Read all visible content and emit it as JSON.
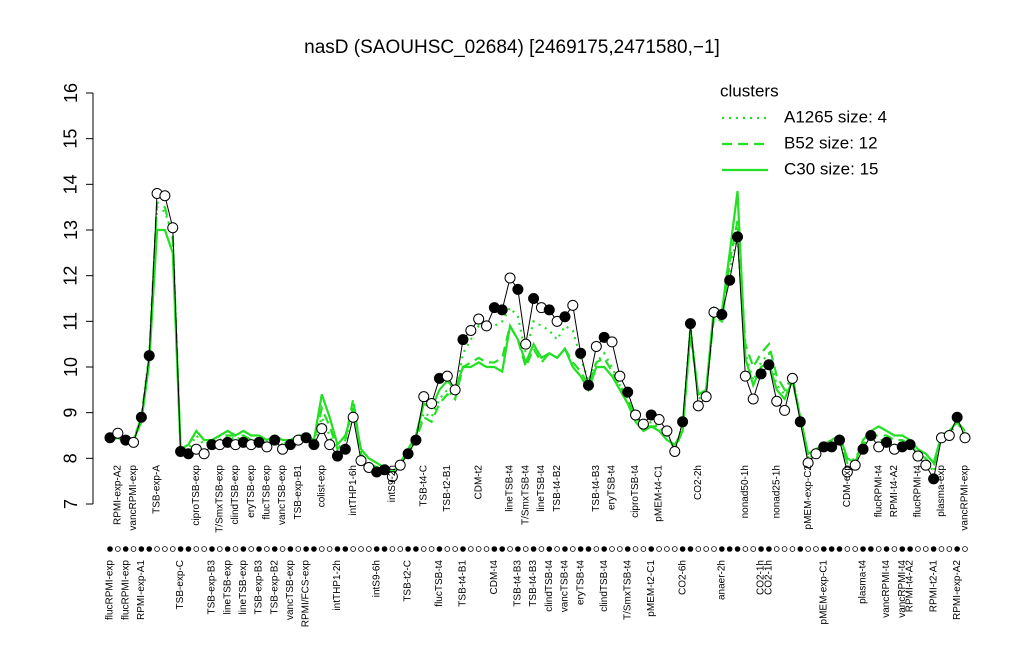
{
  "chart_data": {
    "type": "line",
    "title": "nasD (SAOUHSC_02684) [2469175,2471580,−1]",
    "legend_title": "clusters",
    "legend": "topright",
    "ylim": [
      7,
      16
    ],
    "yticks": [
      7,
      8,
      9,
      10,
      11,
      12,
      13,
      14,
      15,
      16
    ],
    "line_color": "#000000",
    "categories": [
      "flucRPMI-exp",
      "RPMI-exp-A2",
      "flucRPMI-exp",
      "vancRPMI-exp",
      "RPMI-exp-A1",
      null,
      "TSB-exp-A",
      null,
      null,
      "TSB-exp-C",
      null,
      "ciproTSB-exp",
      null,
      "TSB-exp-B3",
      "T/SmxTSB-exp",
      "lineTSB-exp",
      "clindTSB-exp",
      "lineTSB-exp",
      "eryTSB-exp",
      "TSB-exp-B3",
      "flucTSB-exp",
      "TSB-exp-B2",
      "vancTSB-exp",
      "vancTSB-exp",
      "TSB-exp-B1",
      "RPMI/FCS-exp",
      null,
      "colist-exp",
      null,
      "intTHP1-2h",
      null,
      "intTHP1-6h",
      null,
      null,
      "intS9-6h",
      null,
      "intS9-2h",
      null,
      "TSB-t2-C",
      null,
      "TSB-t4-C",
      null,
      "flucTSB-t4",
      "TSB-t2-B1",
      null,
      "TSB-t4-B1",
      null,
      "CDM-t2",
      null,
      "CDM-t4",
      null,
      "lineTSB-t4",
      "TSB-t4-B3",
      "T/SmxTSB-t4",
      "TSB-t4-B3",
      "lineTSB-t4",
      "clindTSB-t4",
      "TSB-t4-B2",
      "vancTSB-t4",
      null,
      "eryTSB-t4",
      null,
      "TSB-t4-B3",
      "clindTSB-t4",
      "eryTSB-t4",
      null,
      "T/SmxTSB-t4",
      "ciproTSB-t4",
      null,
      "pMEM-t2-C1",
      "pMEM-t4-C1",
      null,
      null,
      "CO2-6h",
      null,
      "CO2-2h",
      null,
      null,
      "anaer-2h",
      null,
      null,
      "nonad50-1h",
      null,
      "CO2-1h",
      "CO2-1h",
      "nonad25-1h",
      null,
      null,
      null,
      "pMEM-exp-C2",
      null,
      "pMEM-exp-C1",
      null,
      null,
      "CDM-exp",
      null,
      "plasma-t4",
      null,
      "flucRPMI-t4",
      "vancRPMI-t4",
      "RPMI-t4-A2",
      "vancRPMI-t4",
      "RPMI-t4-A2",
      "flucRPMI-t4",
      null,
      "RPMI-t2-A1",
      "plasma-exp",
      null,
      "RPMI-exp-A2",
      "vancRPMI-exp"
    ],
    "values": [
      8.45,
      8.55,
      8.4,
      8.35,
      8.9,
      10.25,
      13.8,
      13.75,
      13.05,
      8.15,
      8.1,
      8.2,
      8.1,
      8.3,
      8.3,
      8.35,
      8.3,
      8.35,
      8.3,
      8.35,
      8.25,
      8.4,
      8.2,
      8.3,
      8.4,
      8.45,
      8.3,
      8.65,
      8.3,
      8.05,
      8.2,
      8.9,
      7.95,
      7.8,
      7.7,
      7.75,
      7.6,
      7.85,
      8.1,
      8.4,
      9.35,
      9.2,
      9.75,
      9.8,
      9.5,
      10.6,
      10.8,
      11.05,
      10.9,
      11.3,
      11.25,
      11.95,
      11.7,
      10.5,
      11.5,
      11.3,
      11.25,
      11.0,
      11.1,
      11.35,
      10.3,
      9.6,
      10.45,
      10.65,
      10.55,
      9.8,
      9.45,
      8.95,
      8.75,
      8.95,
      8.85,
      8.6,
      8.15,
      8.8,
      10.95,
      9.15,
      9.35,
      11.2,
      11.15,
      11.9,
      12.85,
      9.8,
      9.3,
      9.85,
      10.05,
      9.25,
      9.05,
      9.75,
      8.8,
      7.9,
      8.1,
      8.25,
      8.25,
      8.4,
      7.7,
      7.85,
      8.2,
      8.5,
      8.25,
      8.35,
      8.2,
      8.25,
      8.3,
      8.05,
      7.85,
      7.55,
      8.45,
      8.5,
      8.9,
      8.45
    ],
    "filled": [
      true,
      false,
      true,
      false,
      true,
      true,
      false,
      false,
      false,
      true,
      true,
      false,
      false,
      true,
      false,
      true,
      false,
      true,
      false,
      true,
      false,
      true,
      false,
      true,
      false,
      true,
      true,
      false,
      false,
      true,
      true,
      false,
      false,
      false,
      true,
      true,
      false,
      false,
      true,
      true,
      false,
      false,
      true,
      false,
      false,
      true,
      false,
      false,
      false,
      true,
      true,
      false,
      true,
      false,
      true,
      false,
      true,
      false,
      true,
      false,
      true,
      true,
      false,
      true,
      false,
      false,
      true,
      false,
      false,
      true,
      false,
      false,
      false,
      true,
      true,
      false,
      false,
      false,
      true,
      true,
      true,
      false,
      false,
      true,
      true,
      false,
      false,
      false,
      true,
      false,
      false,
      true,
      true,
      true,
      false,
      false,
      true,
      true,
      false,
      true,
      false,
      true,
      true,
      false,
      false,
      true,
      false,
      false,
      true,
      false
    ],
    "series": [
      {
        "name": "A1265 size: 4",
        "color": "#22e022",
        "dash": "dotted",
        "values": [
          8.5,
          8.5,
          8.4,
          8.4,
          8.9,
          10.3,
          13.5,
          13.4,
          12.9,
          8.2,
          8.2,
          8.5,
          8.3,
          8.4,
          8.4,
          8.5,
          8.4,
          8.5,
          8.4,
          8.4,
          8.3,
          8.4,
          8.3,
          8.4,
          8.4,
          8.5,
          8.3,
          8.9,
          8.5,
          8.1,
          8.3,
          9.2,
          8.1,
          7.9,
          7.8,
          7.8,
          7.6,
          7.9,
          8.1,
          8.4,
          9.0,
          8.9,
          9.3,
          9.5,
          9.3,
          10.3,
          10.6,
          10.9,
          10.8,
          10.9,
          11.0,
          11.3,
          11.1,
          10.3,
          11.0,
          10.9,
          10.8,
          10.6,
          10.9,
          10.8,
          10.2,
          9.7,
          10.1,
          10.3,
          10.0,
          9.6,
          9.3,
          8.9,
          8.7,
          8.8,
          8.7,
          8.5,
          8.2,
          8.7,
          10.9,
          9.3,
          9.4,
          11.2,
          11.2,
          12.1,
          12.9,
          10.3,
          9.7,
          10.1,
          10.3,
          9.6,
          9.4,
          9.8,
          8.9,
          8.0,
          8.1,
          8.3,
          8.4,
          8.4,
          7.9,
          8.0,
          8.3,
          8.5,
          8.4,
          8.4,
          8.3,
          8.3,
          8.3,
          8.1,
          8.0,
          7.7,
          8.5,
          8.5,
          8.8,
          8.5
        ]
      },
      {
        "name": "B52 size: 12",
        "color": "#22e022",
        "dash": "dashed",
        "values": [
          8.5,
          8.5,
          8.4,
          8.4,
          8.9,
          10.2,
          13.6,
          13.5,
          12.8,
          8.2,
          8.3,
          8.6,
          8.4,
          8.4,
          8.5,
          8.5,
          8.5,
          8.5,
          8.4,
          8.4,
          8.3,
          8.4,
          8.3,
          8.4,
          8.4,
          8.5,
          8.3,
          9.1,
          8.7,
          8.2,
          8.4,
          9.3,
          8.1,
          7.9,
          7.8,
          7.8,
          7.6,
          7.9,
          8.1,
          8.4,
          8.9,
          8.8,
          9.2,
          9.4,
          9.3,
          10.0,
          10.1,
          10.2,
          10.1,
          10.1,
          10.2,
          10.9,
          10.6,
          10.0,
          10.4,
          10.1,
          10.3,
          10.2,
          10.4,
          10.1,
          9.9,
          9.6,
          10.1,
          10.2,
          9.9,
          9.6,
          9.3,
          8.9,
          8.7,
          8.7,
          8.7,
          8.5,
          8.2,
          8.6,
          10.7,
          9.4,
          9.5,
          11.1,
          11.0,
          12.3,
          13.2,
          10.5,
          10.0,
          10.3,
          10.5,
          9.8,
          9.5,
          9.8,
          8.9,
          8.0,
          8.1,
          8.3,
          8.4,
          8.4,
          7.9,
          7.9,
          8.3,
          8.5,
          8.5,
          8.5,
          8.4,
          8.4,
          8.3,
          8.1,
          8.0,
          7.8,
          8.5,
          8.6,
          8.8,
          8.5
        ]
      },
      {
        "name": "C30 size: 15",
        "color": "#22e022",
        "dash": "solid",
        "values": [
          8.4,
          8.45,
          8.35,
          8.4,
          8.8,
          10.1,
          13.0,
          13.0,
          12.5,
          8.2,
          8.3,
          8.6,
          8.4,
          8.4,
          8.5,
          8.6,
          8.5,
          8.6,
          8.5,
          8.5,
          8.4,
          8.5,
          8.4,
          8.4,
          8.5,
          8.5,
          8.4,
          9.4,
          8.9,
          8.3,
          8.5,
          9.1,
          8.2,
          8.0,
          7.9,
          7.8,
          7.7,
          7.9,
          8.2,
          8.5,
          9.2,
          9.1,
          9.5,
          9.7,
          9.5,
          10.0,
          10.0,
          10.1,
          10.0,
          10.0,
          9.9,
          10.9,
          10.6,
          10.1,
          10.5,
          10.2,
          10.3,
          10.2,
          10.4,
          10.0,
          9.8,
          9.5,
          10.0,
          10.0,
          9.8,
          9.5,
          9.2,
          8.8,
          8.6,
          8.7,
          8.6,
          8.4,
          8.3,
          8.6,
          10.8,
          9.4,
          9.5,
          11.3,
          11.2,
          12.5,
          13.85,
          10.2,
          9.6,
          10.0,
          10.1,
          9.5,
          9.3,
          9.7,
          8.9,
          8.1,
          8.2,
          8.3,
          8.4,
          8.5,
          8.0,
          7.9,
          8.4,
          8.6,
          8.7,
          8.6,
          8.5,
          8.5,
          8.4,
          8.2,
          8.1,
          7.9,
          8.5,
          8.6,
          8.8,
          8.6
        ]
      }
    ]
  }
}
